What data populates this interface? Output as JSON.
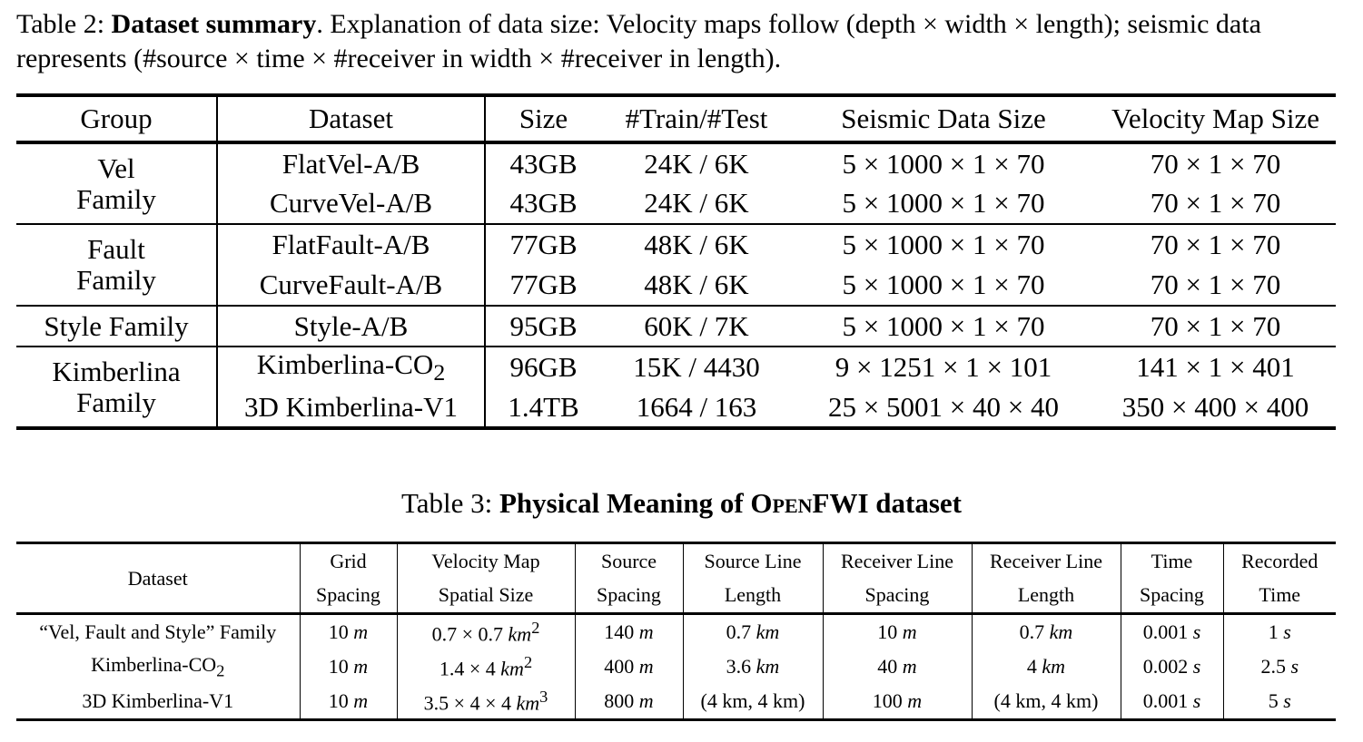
{
  "table2": {
    "label": "Table 2:",
    "title": "Dataset summary",
    "caption_rest": ". Explanation of data size: Velocity maps follow (depth × width × length); seismic data represents (#source × time × #receiver in width × #receiver in length).",
    "headers": [
      "Group",
      "Dataset",
      "Size",
      "#Train/#Test",
      "Seismic Data Size",
      "Velocity Map Size"
    ],
    "groups": [
      {
        "name_line1": "Vel",
        "name_line2": "Family",
        "rows": [
          {
            "dataset": "FlatVel-A/B",
            "size": "43GB",
            "split": "24K / 6K",
            "seismic": "5 × 1000 × 1 × 70",
            "velocity": "70 × 1 × 70"
          },
          {
            "dataset": "CurveVel-A/B",
            "size": "43GB",
            "split": "24K / 6K",
            "seismic": "5 × 1000 × 1 × 70",
            "velocity": "70 × 1 × 70"
          }
        ]
      },
      {
        "name_line1": "Fault",
        "name_line2": "Family",
        "rows": [
          {
            "dataset": "FlatFault-A/B",
            "size": "77GB",
            "split": "48K / 6K",
            "seismic": "5 × 1000 × 1 × 70",
            "velocity": "70 × 1 × 70"
          },
          {
            "dataset": "CurveFault-A/B",
            "size": "77GB",
            "split": "48K / 6K",
            "seismic": "5 × 1000 × 1 × 70",
            "velocity": "70 × 1 × 70"
          }
        ]
      },
      {
        "name_line1": "Style Family",
        "name_line2": "",
        "rows": [
          {
            "dataset": "Style-A/B",
            "size": "95GB",
            "split": "60K / 7K",
            "seismic": "5 × 1000 × 1 × 70",
            "velocity": "70 × 1 × 70"
          }
        ]
      },
      {
        "name_line1": "Kimberlina",
        "name_line2": "Family",
        "rows": [
          {
            "dataset": "Kimberlina-CO",
            "dataset_sub": "2",
            "size": "96GB",
            "split": "15K / 4430",
            "seismic": "9 × 1251 × 1 × 101",
            "velocity": "141 × 1 × 401"
          },
          {
            "dataset": "3D Kimberlina-V1",
            "size": "1.4TB",
            "split": "1664 / 163",
            "seismic": "25 × 5001 × 40 × 40",
            "velocity": "350 × 400 × 400"
          }
        ]
      }
    ]
  },
  "table3": {
    "label": "Table 3:",
    "title_pre": "Physical Meaning of ",
    "title_brand": "OpenFWI",
    "title_post": " dataset",
    "headers": [
      {
        "l1": "Dataset",
        "l2": ""
      },
      {
        "l1": "Grid",
        "l2": "Spacing"
      },
      {
        "l1": "Velocity Map",
        "l2": "Spatial Size"
      },
      {
        "l1": "Source",
        "l2": "Spacing"
      },
      {
        "l1": "Source Line",
        "l2": "Length"
      },
      {
        "l1": "Receiver Line",
        "l2": "Spacing"
      },
      {
        "l1": "Receiver Line",
        "l2": "Length"
      },
      {
        "l1": "Time",
        "l2": "Spacing"
      },
      {
        "l1": "Recorded",
        "l2": "Time"
      }
    ],
    "rows": [
      {
        "dataset": "“Vel, Fault and Style” Family",
        "grid": "10",
        "grid_u": "m",
        "vm": "0.7 × 0.7 ",
        "vm_u": "km",
        "vm_exp": "2",
        "src": "140",
        "src_u": "m",
        "sll": "0.7",
        "sll_u": "km",
        "rls": "10",
        "rls_u": "m",
        "rll": "0.7",
        "rll_u": "km",
        "ts": "0.001",
        "ts_u": "s",
        "rt": "1",
        "rt_u": "s"
      },
      {
        "dataset": "Kimberlina-CO",
        "dataset_sub": "2",
        "grid": "10",
        "grid_u": "m",
        "vm": "1.4 × 4 ",
        "vm_u": "km",
        "vm_exp": "2",
        "src": "400",
        "src_u": "m",
        "sll": "3.6",
        "sll_u": "km",
        "rls": "40",
        "rls_u": "m",
        "rll": "4",
        "rll_u": "km",
        "ts": "0.002",
        "ts_u": "s",
        "rt": "2.5",
        "rt_u": "s"
      },
      {
        "dataset": "3D Kimberlina-V1",
        "grid": "10",
        "grid_u": "m",
        "vm": "3.5 × 4 × 4 ",
        "vm_u": "km",
        "vm_exp": "3",
        "src": "800",
        "src_u": "m",
        "sll": "(4 km, 4 km)",
        "sll_u": "",
        "rls": "100",
        "rls_u": "m",
        "rll": "(4 km, 4 km)",
        "rll_u": "",
        "ts": "0.001",
        "ts_u": "s",
        "rt": "5",
        "rt_u": "s"
      }
    ]
  }
}
